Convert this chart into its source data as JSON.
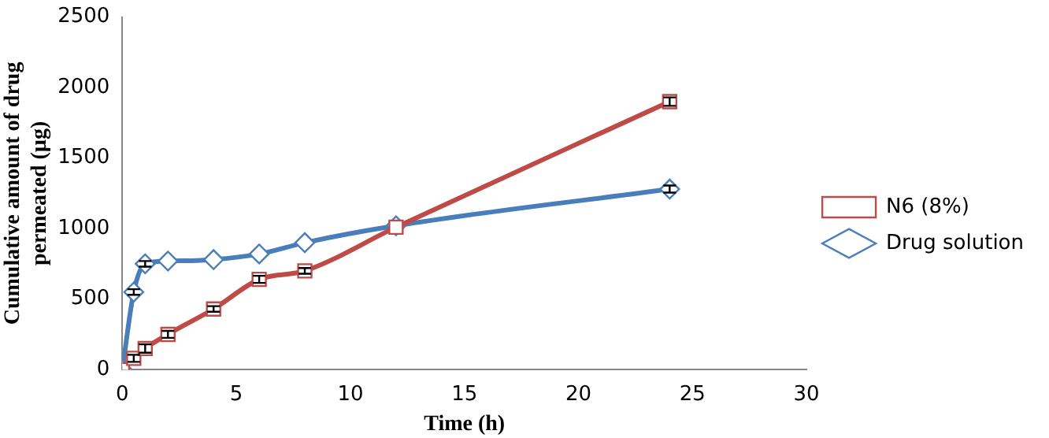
{
  "chart_data": {
    "type": "line",
    "xlabel": "Time (h)",
    "ylabel": "Cumulative amount of drug permeated (µg)",
    "x": [
      0,
      0.5,
      1,
      2,
      4,
      6,
      8,
      12,
      24
    ],
    "series": [
      {
        "name": "Drug solution",
        "color": "#4a7ebb",
        "marker": "diamond",
        "values": [
          0,
          550,
          750,
          770,
          780,
          820,
          900,
          1020,
          1280
        ],
        "errors": [
          null,
          20,
          20,
          null,
          null,
          null,
          null,
          null,
          25
        ]
      },
      {
        "name": "N6 (8%)",
        "color": "#be4b48",
        "marker": "square",
        "values": [
          0,
          80,
          150,
          250,
          430,
          640,
          700,
          1010,
          1900
        ],
        "errors": [
          null,
          25,
          30,
          25,
          20,
          25,
          20,
          null,
          30
        ]
      }
    ],
    "xlim": [
      0,
      30
    ],
    "xticks": [
      0,
      5,
      10,
      15,
      20,
      25,
      30
    ],
    "ylim": [
      0,
      2500
    ],
    "yticks": [
      0,
      500,
      1000,
      1500,
      2000,
      2500
    ],
    "grid": false,
    "legend": "right",
    "line_style": "solid"
  }
}
